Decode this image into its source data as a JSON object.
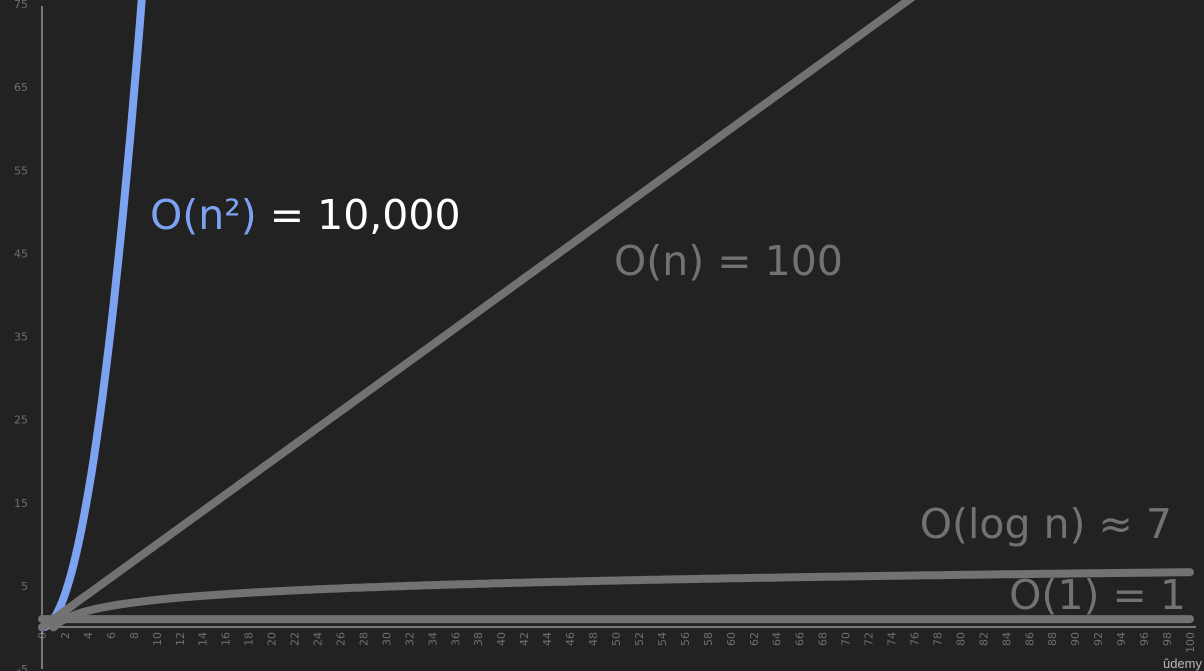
{
  "chart_data": {
    "type": "line",
    "x_range": [
      0,
      100
    ],
    "y_range": [
      -5,
      75
    ],
    "y_ticks": [
      -5,
      5,
      15,
      25,
      35,
      45,
      55,
      65,
      75
    ],
    "x_ticks": [
      0,
      2,
      4,
      6,
      8,
      10,
      12,
      14,
      16,
      18,
      20,
      22,
      24,
      26,
      28,
      30,
      32,
      34,
      36,
      38,
      40,
      42,
      44,
      46,
      48,
      50,
      52,
      54,
      56,
      58,
      60,
      62,
      64,
      66,
      68,
      70,
      72,
      74,
      76,
      78,
      80,
      82,
      84,
      86,
      88,
      90,
      92,
      94,
      96,
      98,
      100
    ],
    "series": [
      {
        "key": "n2",
        "formula": "n^2",
        "color": "#7ea2f2",
        "x": [
          0,
          1,
          2,
          3,
          4,
          5,
          6,
          7,
          8,
          9
        ],
        "y": [
          0,
          1,
          4,
          9,
          16,
          25,
          36,
          49,
          64,
          81
        ]
      },
      {
        "key": "n",
        "formula": "n",
        "color": "#727272",
        "x": [
          0,
          100
        ],
        "y": [
          0,
          100
        ]
      },
      {
        "key": "logn",
        "formula": "log2(n)",
        "color": "#727272",
        "x": [
          1,
          2,
          4,
          8,
          16,
          32,
          64,
          100
        ],
        "y": [
          0,
          1,
          2,
          3,
          4,
          5,
          6,
          6.64
        ]
      },
      {
        "key": "const",
        "formula": "1",
        "color": "#727272",
        "x": [
          0,
          100
        ],
        "y": [
          1,
          1
        ]
      }
    ],
    "annotations": [
      {
        "key": "n2",
        "parts": [
          {
            "text": "O(n²)",
            "color": "#7ea2f2"
          },
          {
            "text": " = 10,000",
            "color": "#ffffff"
          }
        ]
      },
      {
        "key": "n",
        "parts": [
          {
            "text": "O(n)",
            "color": "#727272"
          },
          {
            "text": " = 100",
            "color": "#727272"
          }
        ]
      },
      {
        "key": "logn",
        "parts": [
          {
            "text": "O(log n) ≈ 7",
            "color": "#727272"
          }
        ]
      },
      {
        "key": "const",
        "parts": [
          {
            "text": "O(1) = 1",
            "color": "#727272"
          }
        ]
      }
    ],
    "axis_color": "#cfcfcf",
    "grid": false,
    "legend": "none"
  },
  "watermark": "ûdemy"
}
